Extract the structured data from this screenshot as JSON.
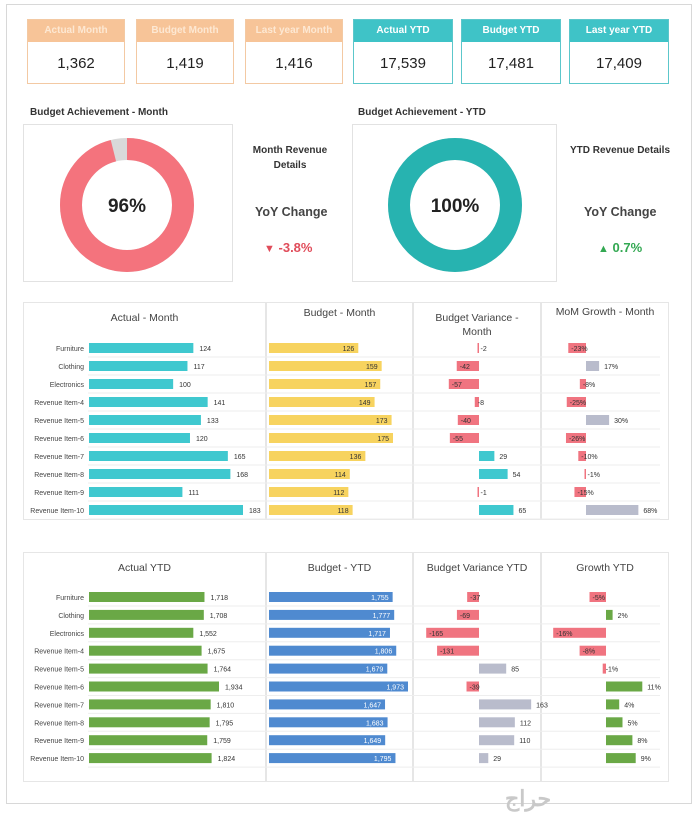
{
  "kpis": [
    {
      "label": "Actual Month",
      "value": "1,362",
      "style": "orange"
    },
    {
      "label": "Budget Month",
      "value": "1,419",
      "style": "orange"
    },
    {
      "label": "Last year Month",
      "value": "1,416",
      "style": "orange"
    },
    {
      "label": "Actual YTD",
      "value": "17,539",
      "style": "teal"
    },
    {
      "label": "Budget YTD",
      "value": "17,481",
      "style": "teal"
    },
    {
      "label": "Last year YTD",
      "value": "17,409",
      "style": "teal"
    }
  ],
  "achievement_month": {
    "title": "Budget Achievement - Month",
    "percent": 96,
    "label": "96%",
    "details": "Month Revenue Details",
    "yoy_label": "YoY Change",
    "change": "-3.8%",
    "arrow": "▼",
    "color": "#f4737d",
    "rest": "#d9d9d9",
    "change_color": "#e04c5a"
  },
  "achievement_ytd": {
    "title": "Budget Achievement - YTD",
    "percent": 100,
    "label": "100%",
    "details": "YTD Revenue Details",
    "yoy_label": "YoY Change",
    "change": "0.7%",
    "arrow": "▲",
    "color": "#27b3b0",
    "rest": "#d9d9d9",
    "change_color": "#33a852"
  },
  "watermark": "حراج",
  "colors": {
    "teal": "#3fc8cf",
    "yellow": "#f7d35f",
    "red": "#f07480",
    "grey": "#b9bccc",
    "green": "#6aa846",
    "blue": "#4f8ad0"
  },
  "chart_data": [
    {
      "type": "bar",
      "title": "Actual - Month",
      "categories": [
        "Furniture",
        "Clothing",
        "Electronics",
        "Revenue Item-4",
        "Revenue Item-5",
        "Revenue Item-6",
        "Revenue Item-7",
        "Revenue Item-8",
        "Revenue Item-9",
        "Revenue Item-10"
      ],
      "values": [
        124,
        117,
        100,
        141,
        133,
        120,
        165,
        168,
        111,
        183
      ],
      "labels": [
        "124",
        "117",
        "100",
        "141",
        "133",
        "120",
        "165",
        "168",
        "111",
        "183"
      ],
      "color": "teal"
    },
    {
      "type": "bar",
      "title": "Budget - Month",
      "values": [
        126,
        159,
        157,
        149,
        173,
        175,
        136,
        114,
        112,
        118
      ],
      "labels": [
        "126",
        "159",
        "157",
        "149",
        "173",
        "175",
        "136",
        "114",
        "112",
        "118"
      ],
      "color": "yellow"
    },
    {
      "type": "bar",
      "title": "Budget Variance - Month",
      "values": [
        -2,
        -42,
        -57,
        -8,
        -40,
        -55,
        29,
        54,
        -1,
        65
      ],
      "labels": [
        "-2",
        "-42",
        "-57",
        "-8",
        "-40",
        "-55",
        "29",
        "54",
        "-1",
        "65"
      ],
      "pos_color": "teal",
      "neg_color": "red"
    },
    {
      "type": "bar",
      "title": "MoM Growth - Month",
      "values": [
        -23,
        17,
        -8,
        -25,
        30,
        -26,
        -10,
        -1,
        -15,
        68
      ],
      "labels": [
        "-23%",
        "17%",
        "-8%",
        "-25%",
        "30%",
        "-26%",
        "-10%",
        "-1%",
        "-15%",
        "68%"
      ],
      "pos_color": "grey",
      "neg_color": "red"
    },
    {
      "type": "bar",
      "title": "Actual YTD",
      "categories": [
        "Furniture",
        "Clothing",
        "Electronics",
        "Revenue Item-4",
        "Revenue Item-5",
        "Revenue Item-6",
        "Revenue Item-7",
        "Revenue Item-8",
        "Revenue Item-9",
        "Revenue Item-10"
      ],
      "values": [
        1718,
        1708,
        1552,
        1675,
        1764,
        1934,
        1810,
        1795,
        1759,
        1824
      ],
      "labels": [
        "1,718",
        "1,708",
        "1,552",
        "1,675",
        "1,764",
        "1,934",
        "1,810",
        "1,795",
        "1,759",
        "1,824"
      ],
      "color": "green"
    },
    {
      "type": "bar",
      "title": "Budget - YTD",
      "values": [
        1755,
        1777,
        1717,
        1806,
        1679,
        1973,
        1647,
        1683,
        1649,
        1795
      ],
      "labels": [
        "1,755",
        "1,777",
        "1,717",
        "1,806",
        "1,679",
        "1,973",
        "1,647",
        "1,683",
        "1,649",
        "1,795"
      ],
      "color": "blue"
    },
    {
      "type": "bar",
      "title": "Budget Variance YTD",
      "values": [
        -37,
        -69,
        -165,
        -131,
        85,
        -39,
        163,
        112,
        110,
        29
      ],
      "labels": [
        "-37",
        "-69",
        "-165",
        "-131",
        "85",
        "-39",
        "163",
        "112",
        "110",
        "29"
      ],
      "pos_color": "grey",
      "neg_color": "red"
    },
    {
      "type": "bar",
      "title": "Growth YTD",
      "values": [
        -5,
        2,
        -16,
        -8,
        -1,
        11,
        4,
        5,
        8,
        9
      ],
      "labels": [
        "-5%",
        "2%",
        "-16%",
        "-8%",
        "-1%",
        "11%",
        "4%",
        "5%",
        "8%",
        "9%"
      ],
      "pos_color": "green",
      "neg_color": "red"
    }
  ]
}
